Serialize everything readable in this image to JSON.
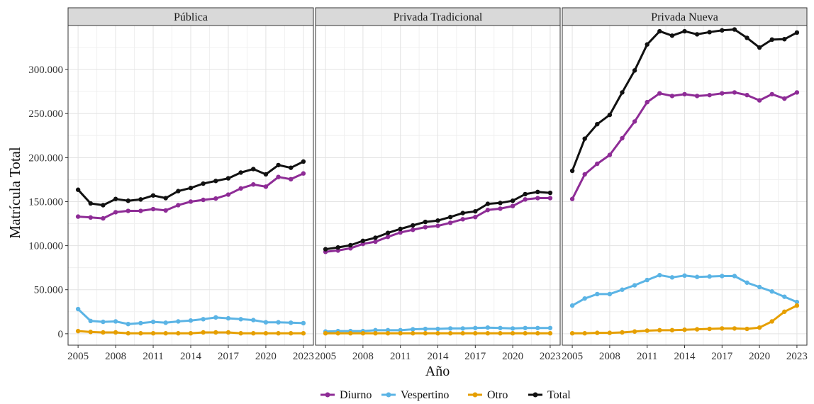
{
  "chart_data": {
    "type": "line",
    "ylabel": "Matrícula Total",
    "xlabel": "Año",
    "xlim": [
      2004.2,
      2023.8
    ],
    "ylim": [
      -13000,
      350000
    ],
    "x_ticks": [
      2005,
      2008,
      2011,
      2014,
      2017,
      2020,
      2023
    ],
    "x_tick_labels": [
      "2005",
      "2008",
      "2011",
      "2014",
      "2017",
      "2020",
      "2023"
    ],
    "y_ticks": [
      0,
      50000,
      100000,
      150000,
      200000,
      250000,
      300000
    ],
    "y_tick_labels": [
      "0",
      "50.000",
      "100.000",
      "150.000",
      "200.000",
      "250.000",
      "300.000"
    ],
    "grid": true,
    "legend_position": "bottom",
    "legend": [
      {
        "name": "Diurno",
        "color": "#8E2C96"
      },
      {
        "name": "Vespertino",
        "color": "#5BB4E5"
      },
      {
        "name": "Otro",
        "color": "#E69F00"
      },
      {
        "name": "Total",
        "color": "#111111"
      }
    ],
    "x": [
      2005,
      2006,
      2007,
      2008,
      2009,
      2010,
      2011,
      2012,
      2013,
      2014,
      2015,
      2016,
      2017,
      2018,
      2019,
      2020,
      2021,
      2022,
      2023
    ],
    "panels": [
      {
        "title": "Pública",
        "series": [
          {
            "name": "Diurno",
            "values": [
              133000,
              132000,
              131000,
              138000,
              139500,
              139500,
              141500,
              140000,
              146000,
              150000,
              152000,
              153500,
              158000,
              165000,
              169500,
              167000,
              178000,
              175500,
              182000
            ]
          },
          {
            "name": "Vespertino",
            "values": [
              28000,
              14500,
              13500,
              14000,
              11000,
              12000,
              13500,
              12500,
              14000,
              15000,
              16500,
              18500,
              17500,
              16500,
              15500,
              13000,
              13000,
              12500,
              12000
            ]
          },
          {
            "name": "Otro",
            "values": [
              3000,
              2000,
              1500,
              1500,
              500,
              500,
              500,
              500,
              500,
              500,
              1500,
              1500,
              1500,
              500,
              500,
              500,
              500,
              500,
              500
            ]
          },
          {
            "name": "Total",
            "values": [
              163500,
              148000,
              146000,
              153000,
              151000,
              152500,
              157000,
              154000,
              162000,
              165500,
              170500,
              173500,
              176500,
              183000,
              187000,
              181000,
              191500,
              188500,
              195500
            ]
          }
        ]
      },
      {
        "title": "Privada Tradicional",
        "series": [
          {
            "name": "Diurno",
            "values": [
              93000,
              94500,
              97000,
              102000,
              104500,
              110000,
              115000,
              118000,
              121000,
              122500,
              126000,
              130000,
              132500,
              140500,
              142000,
              145000,
              152500,
              154000,
              154000
            ]
          },
          {
            "name": "Vespertino",
            "values": [
              2500,
              3000,
              3000,
              3000,
              4000,
              4000,
              4000,
              5000,
              5500,
              5500,
              6000,
              6000,
              6500,
              7000,
              6500,
              6000,
              6500,
              6500,
              6500
            ]
          },
          {
            "name": "Otro",
            "values": [
              500,
              500,
              500,
              500,
              500,
              500,
              500,
              500,
              500,
              500,
              500,
              500,
              500,
              500,
              500,
              500,
              500,
              500,
              500
            ]
          },
          {
            "name": "Total",
            "values": [
              96000,
              98000,
              100500,
              105500,
              109000,
              114500,
              119000,
              123000,
              127000,
              128500,
              132500,
              137000,
              139000,
              147500,
              148500,
              151000,
              158500,
              161000,
              160000
            ]
          }
        ]
      },
      {
        "title": "Privada Nueva",
        "series": [
          {
            "name": "Diurno",
            "values": [
              153000,
              181000,
              193000,
              203000,
              222000,
              241000,
              263000,
              273000,
              270000,
              272000,
              270000,
              271000,
              273000,
              274000,
              271000,
              265000,
              272000,
              267000,
              274000
            ]
          },
          {
            "name": "Vespertino",
            "values": [
              32000,
              40000,
              45000,
              45000,
              50000,
              55000,
              61000,
              66500,
              64000,
              66000,
              64500,
              65000,
              65500,
              65500,
              58000,
              53000,
              48000,
              42000,
              36000
            ]
          },
          {
            "name": "Otro",
            "values": [
              500,
              500,
              1000,
              1000,
              1500,
              2500,
              3500,
              4000,
              4000,
              4500,
              5000,
              5500,
              6000,
              6000,
              5500,
              7000,
              14000,
              25000,
              32000
            ]
          },
          {
            "name": "Total",
            "values": [
              185000,
              221500,
              238000,
              248500,
              274000,
              299000,
              328500,
              343500,
              338500,
              343500,
              340000,
              342500,
              344500,
              345500,
              336000,
              325000,
              334000,
              334500,
              342000
            ]
          }
        ]
      }
    ]
  }
}
